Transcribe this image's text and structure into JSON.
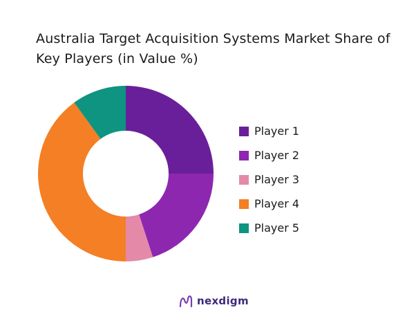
{
  "title_line1": "Australia Target Acquisition Systems Market Share of",
  "title_line2": "Key Players (in Value %)",
  "chart_data": {
    "type": "pie",
    "variant": "donut",
    "title": "Australia Target Acquisition Systems Market Share of Key Players (in Value %)",
    "categories": [
      "Player 1",
      "Player 2",
      "Player 3",
      "Player 4",
      "Player 5"
    ],
    "values": [
      25,
      20,
      5,
      40,
      10
    ],
    "colors": [
      "#6a1f9a",
      "#8d27b0",
      "#e48aa8",
      "#f47f24",
      "#0e9480"
    ],
    "legend": "right"
  },
  "brand": {
    "name": "nexdigm",
    "color": "#3b2a7a",
    "icon": "nexdigm-logo-icon"
  }
}
